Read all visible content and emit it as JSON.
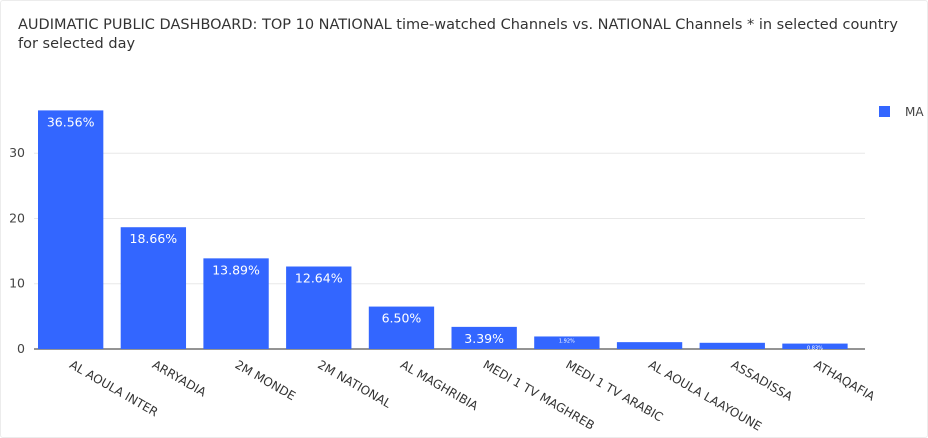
{
  "title": "AUDIMATIC PUBLIC DASHBOARD: TOP 10 NATIONAL time-watched Channels vs. NATIONAL Channels * in selected country for selected day",
  "chart_data": {
    "type": "bar",
    "categories": [
      "AL AOULA INTER",
      "ARRYADIA",
      "2M MONDE",
      "2M NATIONAL",
      "AL MAGHRIBIA",
      "MEDI 1 TV MAGHREB",
      "MEDI 1 TV ARABIC",
      "AL AOULA LAAYOUNE",
      "ASSADISSA",
      "ATHAQAFIA"
    ],
    "series": [
      {
        "name": "MA",
        "values": [
          36.56,
          18.66,
          13.89,
          12.64,
          6.5,
          3.39,
          1.92,
          1.05,
          0.95,
          0.83
        ],
        "labels": [
          "36.56%",
          "18.66%",
          "13.89%",
          "12.64%",
          "6.50%",
          "3.39%",
          "1.92%",
          "",
          "",
          "0.83%"
        ]
      }
    ],
    "ylim": [
      0,
      38
    ],
    "yticks": [
      "0",
      "10",
      "20",
      "30"
    ],
    "grid": true,
    "legend": "top-right",
    "color": "#3366ff"
  }
}
